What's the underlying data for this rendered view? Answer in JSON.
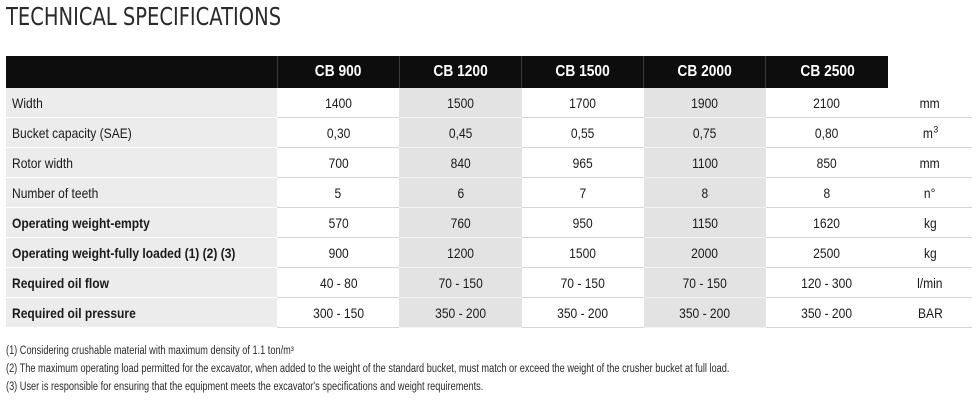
{
  "title": "TECHNICAL SPECIFICATIONS",
  "models": [
    "CB 900",
    "CB 1200",
    "CB 1500",
    "CB 2000",
    "CB 2500"
  ],
  "rows": [
    {
      "label": "Width",
      "values": [
        "1400",
        "1500",
        "1700",
        "1900",
        "2100"
      ],
      "unit": "mm",
      "unit_sup": "",
      "bold": false
    },
    {
      "label": "Bucket capacity (SAE)",
      "values": [
        "0,30",
        "0,45",
        "0,55",
        "0,75",
        "0,80"
      ],
      "unit": "m",
      "unit_sup": "3",
      "bold": false
    },
    {
      "label": "Rotor width",
      "values": [
        "700",
        "840",
        "965",
        "1100",
        "850"
      ],
      "unit": "mm",
      "unit_sup": "",
      "bold": false
    },
    {
      "label": "Number of teeth",
      "values": [
        "5",
        "6",
        "7",
        "8",
        "8"
      ],
      "unit": "n°",
      "unit_sup": "",
      "bold": false
    },
    {
      "label": "Operating weight-empty",
      "values": [
        "570",
        "760",
        "950",
        "1150",
        "1620"
      ],
      "unit": "kg",
      "unit_sup": "",
      "bold": true
    },
    {
      "label": "Operating weight-fully loaded (1) (2) (3)",
      "values": [
        "900",
        "1200",
        "1500",
        "2000",
        "2500"
      ],
      "unit": "kg",
      "unit_sup": "",
      "bold": true
    },
    {
      "label": "Required oil flow",
      "values": [
        "40 - 80",
        "70 - 150",
        "70 - 150",
        "70 - 150",
        "120 - 300"
      ],
      "unit": "l/min",
      "unit_sup": "",
      "bold": true
    },
    {
      "label": "Required oil pressure",
      "values": [
        "300 - 150",
        "350 - 200",
        "350 - 200",
        "350 - 200",
        "350 - 200"
      ],
      "unit": "BAR",
      "unit_sup": "",
      "bold": true
    }
  ],
  "notes": [
    "(1) Considering crushable material with maximum density of 1.1 ton/m³",
    "(2) The maximum operating load permitted for the excavator, when added to the weight of the standard bucket, must match or exceed the weight of the crusher bucket at full load.",
    "(3) User is responsible for ensuring that the equipment meets the excavator's specifications and weight requirements."
  ]
}
